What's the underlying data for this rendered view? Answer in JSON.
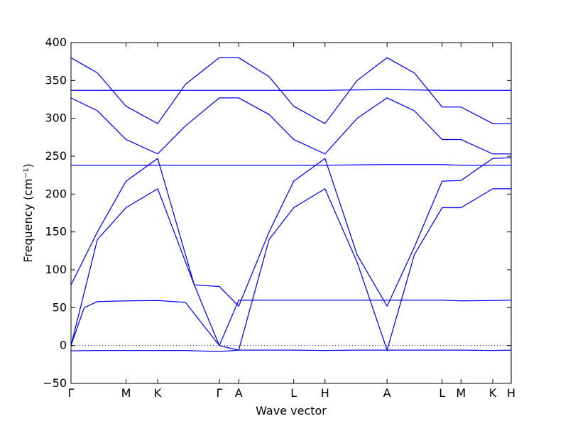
{
  "chart_data": {
    "type": "line",
    "title": "",
    "xlabel": "Wave vector",
    "ylabel": "Frequency (cm⁻¹)",
    "ylim": [
      -50,
      400
    ],
    "yticks": [
      -50,
      0,
      50,
      100,
      150,
      200,
      250,
      300,
      350,
      400
    ],
    "grid": false,
    "zero_line": 0,
    "color": "#0000ff",
    "x_labels": [
      {
        "label": "Γ",
        "x": 0
      },
      {
        "label": "M",
        "x": 0.125
      },
      {
        "label": "K",
        "x": 0.197
      },
      {
        "label": "Γ",
        "x": 0.337
      },
      {
        "label": "A",
        "x": 0.381
      },
      {
        "label": "L",
        "x": 0.506
      },
      {
        "label": "H",
        "x": 0.577
      },
      {
        "label": "A",
        "x": 0.718
      },
      {
        "label": "L",
        "x": 0.843
      },
      {
        "label": "M",
        "x": 0.886
      },
      {
        "label": "K",
        "x": 0.958
      },
      {
        "label": "H",
        "x": 1.0
      }
    ],
    "series": [
      {
        "x": [
          0,
          0.06,
          0.125,
          0.197,
          0.26,
          0.337,
          0.381,
          0.45,
          0.506,
          0.577,
          0.65,
          0.718,
          0.78,
          0.843,
          0.886,
          0.958,
          1.0
        ],
        "values": [
          -7,
          -6.5,
          -6.5,
          -6.5,
          -6.5,
          -8,
          -6,
          -6,
          -6,
          -6.5,
          -6,
          -6,
          -6,
          -6,
          -6,
          -6.5,
          -6
        ]
      },
      {
        "x": [
          0,
          0.03,
          0.06,
          0.125,
          0.197,
          0.26,
          0.337,
          0.381,
          0.45,
          0.506,
          0.577,
          0.65,
          0.718,
          0.78,
          0.843,
          0.886,
          0.958,
          1.0
        ],
        "values": [
          0,
          50,
          58,
          59,
          59.5,
          57,
          0,
          60,
          60,
          60,
          60,
          60,
          60,
          60,
          60,
          59,
          59.5,
          60
        ]
      },
      {
        "x": [
          0,
          0.06,
          0.125,
          0.197,
          0.28,
          0.337,
          0.381,
          0.45,
          0.506,
          0.577,
          0.65,
          0.718,
          0.78,
          0.843,
          0.886,
          0.958,
          1.0
        ],
        "values": [
          0,
          140,
          182,
          207,
          80,
          0,
          -6,
          140,
          182,
          207,
          110,
          -6,
          120,
          182,
          182,
          207,
          207
        ]
      },
      {
        "x": [
          0,
          0.06,
          0.125,
          0.197,
          0.28,
          0.337,
          0.381,
          0.45,
          0.506,
          0.577,
          0.65,
          0.718,
          0.78,
          0.843,
          0.886,
          0.958,
          1.0
        ],
        "values": [
          80,
          150,
          217,
          247,
          80,
          78,
          52,
          150,
          217,
          247,
          120,
          52,
          130,
          217,
          218,
          247,
          248
        ]
      },
      {
        "x": [
          0,
          0.125,
          0.197,
          0.337,
          0.381,
          0.506,
          0.577,
          0.718,
          0.843,
          0.886,
          0.958,
          1.0
        ],
        "values": [
          238,
          238,
          238,
          238,
          238,
          238,
          238,
          239,
          239,
          238,
          238,
          238
        ]
      },
      {
        "x": [
          0,
          0.06,
          0.125,
          0.197,
          0.26,
          0.337,
          0.381,
          0.45,
          0.506,
          0.577,
          0.65,
          0.718,
          0.78,
          0.843,
          0.886,
          0.958,
          1.0
        ],
        "values": [
          327,
          310,
          272,
          253,
          290,
          327,
          327,
          305,
          272,
          253,
          300,
          327,
          310,
          272,
          272,
          253,
          253
        ]
      },
      {
        "x": [
          0,
          0.06,
          0.125,
          0.197,
          0.26,
          0.337,
          0.381,
          0.45,
          0.506,
          0.577,
          0.65,
          0.718,
          0.78,
          0.843,
          0.886,
          0.958,
          1.0
        ],
        "values": [
          380,
          360,
          316,
          293,
          345,
          380,
          380,
          355,
          316,
          293,
          350,
          380,
          360,
          315,
          315,
          293,
          293
        ]
      },
      {
        "x": [
          0,
          0.125,
          0.197,
          0.337,
          0.381,
          0.506,
          0.577,
          0.718,
          0.843,
          0.886,
          0.958,
          1.0
        ],
        "values": [
          337,
          337,
          337,
          337,
          337,
          337,
          337,
          338,
          337,
          337,
          337,
          337
        ]
      }
    ]
  }
}
